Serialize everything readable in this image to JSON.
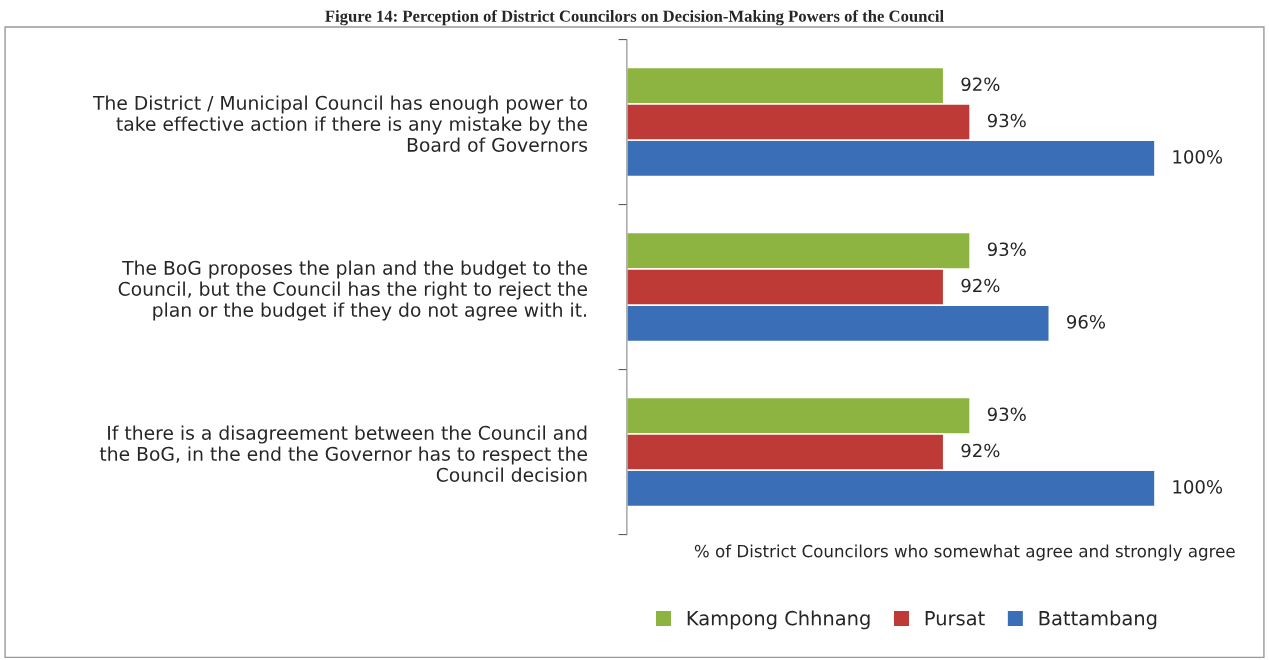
{
  "chart_data": {
    "type": "bar",
    "orientation": "horizontal",
    "title": "Figure 14: Perception of District Councilors on Decision-Making Powers of the Council",
    "xlabel": "% of District Councilors who somewhat agree and strongly agree",
    "categories": [
      "The District / Municipal Council has enough power to\ntake effective action if there is any mistake by the\nBoard of Governors",
      "The BoG proposes the plan and the budget to the\nCouncil, but the Council has the right to reject the\nplan or the budget if they do not agree with it.",
      "If there is a disagreement between the Council and\nthe BoG, in the end the Governor has to respect the\nCouncil decision"
    ],
    "series": [
      {
        "name": "Kampong Chhnang",
        "color": "#8db440",
        "values": [
          92,
          93,
          93
        ],
        "value_labels": [
          "92%",
          "93%",
          "93%"
        ]
      },
      {
        "name": "Pursat",
        "color": "#be3a37",
        "values": [
          93,
          92,
          92
        ],
        "value_labels": [
          "93%",
          "92%",
          "92%"
        ]
      },
      {
        "name": "Battambang",
        "color": "#3a6fb8",
        "values": [
          100,
          96,
          100
        ],
        "value_labels": [
          "100%",
          "96%",
          "100%"
        ]
      }
    ],
    "xlim": [
      80,
      100
    ],
    "tick_labels": "y",
    "legend": "bottom",
    "grid": false
  }
}
